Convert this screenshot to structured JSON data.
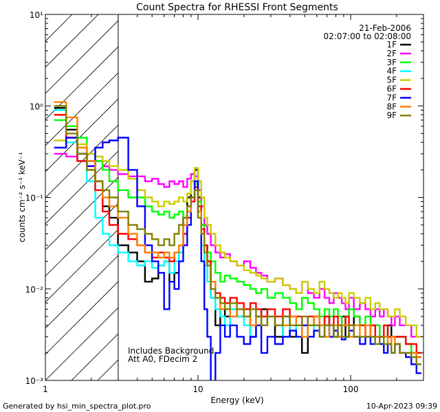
{
  "chart_data": {
    "type": "line",
    "title": "Count Spectra for RHESSI Front Segments",
    "xlabel": "Energy (keV)",
    "ylabel": "counts cm⁻² s⁻¹ keV⁻¹",
    "xscale": "log",
    "yscale": "log",
    "xlim": [
      1,
      300
    ],
    "ylim": [
      0.001,
      10
    ],
    "x_ticks": [
      {
        "value": 1,
        "label": "1"
      },
      {
        "value": 10,
        "label": "10"
      },
      {
        "value": 100,
        "label": "100"
      }
    ],
    "y_ticks": [
      {
        "value": 10,
        "label": "10¹"
      },
      {
        "value": 1,
        "label": "10⁰"
      },
      {
        "value": 0.1,
        "label": "10⁻¹"
      },
      {
        "value": 0.01,
        "label": "10⁻²"
      },
      {
        "value": 0.001,
        "label": "10⁻³"
      }
    ],
    "date_line": "21-Feb-2006",
    "time_line": "02:07:00 to 02:08:00",
    "annotation_1": "Includes Background",
    "annotation_2": "Att A0, FDecim 2",
    "hatched_region_xmax": 3,
    "energy_bins": [
      1.25,
      1.5,
      1.75,
      2.0,
      2.25,
      2.5,
      2.75,
      3.25,
      3.75,
      4.25,
      4.75,
      5.25,
      5.75,
      6.25,
      6.75,
      7.25,
      7.75,
      8.25,
      8.75,
      9.25,
      9.75,
      10.25,
      10.75,
      11.25,
      11.75,
      12.5,
      13.5,
      14.5,
      15.5,
      17,
      19,
      21,
      23,
      25,
      27,
      30,
      34,
      38,
      42,
      46,
      50,
      55,
      60,
      65,
      70,
      75,
      80,
      85,
      90,
      95,
      100,
      110,
      120,
      130,
      140,
      150,
      160,
      170,
      180,
      190,
      200,
      220,
      240,
      260,
      280
    ],
    "series": [
      {
        "name": "1F",
        "color": "#000000",
        "values": [
          0.95,
          0.55,
          0.3,
          0.25,
          0.15,
          0.08,
          0.06,
          0.03,
          0.025,
          0.02,
          0.012,
          0.013,
          0.018,
          0.02,
          0.012,
          0.015,
          0.03,
          0.06,
          0.1,
          0.15,
          0.2,
          0.1,
          0.05,
          0.03,
          0.02,
          0.008,
          0.004,
          0.006,
          0.005,
          0.006,
          0.005,
          0.006,
          0.003,
          0.005,
          0.006,
          0.005,
          0.003,
          0.005,
          0.003,
          0.004,
          0.002,
          0.004,
          0.005,
          0.004,
          0.005,
          0.004,
          0.003,
          0.004,
          0.005,
          0.003,
          0.004,
          0.005,
          0.004,
          0.003,
          0.004,
          0.004,
          0.003,
          0.003,
          0.004,
          0.003,
          0.003,
          0.003,
          0.0025,
          0.002,
          0.0018
        ]
      },
      {
        "name": "2F",
        "color": "#ff00ff",
        "values": [
          0.3,
          0.28,
          0.25,
          0.22,
          0.25,
          0.22,
          0.2,
          0.18,
          0.17,
          0.17,
          0.15,
          0.16,
          0.14,
          0.13,
          0.15,
          0.14,
          0.15,
          0.13,
          0.16,
          0.18,
          0.17,
          0.12,
          0.08,
          0.05,
          0.04,
          0.03,
          0.025,
          0.022,
          0.024,
          0.02,
          0.018,
          0.02,
          0.017,
          0.015,
          0.014,
          0.012,
          0.013,
          0.011,
          0.01,
          0.009,
          0.012,
          0.009,
          0.008,
          0.01,
          0.008,
          0.007,
          0.009,
          0.008,
          0.007,
          0.006,
          0.008,
          0.006,
          0.007,
          0.006,
          0.005,
          0.006,
          0.005,
          0.006,
          0.005,
          0.004,
          0.005,
          0.004,
          0.004,
          0.003,
          0.003
        ]
      },
      {
        "name": "3F",
        "color": "#00ff00",
        "values": [
          0.7,
          0.6,
          0.45,
          0.3,
          0.25,
          0.2,
          0.15,
          0.12,
          0.1,
          0.1,
          0.08,
          0.07,
          0.065,
          0.07,
          0.06,
          0.065,
          0.07,
          0.06,
          0.08,
          0.1,
          0.14,
          0.09,
          0.05,
          0.03,
          0.025,
          0.02,
          0.015,
          0.012,
          0.014,
          0.013,
          0.012,
          0.011,
          0.01,
          0.009,
          0.01,
          0.008,
          0.009,
          0.008,
          0.007,
          0.006,
          0.008,
          0.007,
          0.006,
          0.005,
          0.006,
          0.005,
          0.006,
          0.005,
          0.004,
          0.005,
          0.006,
          0.005,
          0.004,
          0.005,
          0.004,
          0.004,
          0.003,
          0.004,
          0.003,
          0.003,
          0.003,
          0.003,
          0.0025,
          0.002,
          0.002
        ]
      },
      {
        "name": "4F",
        "color": "#00ffff",
        "values": [
          0.9,
          0.4,
          0.25,
          0.15,
          0.06,
          0.04,
          0.03,
          0.025,
          0.02,
          0.018,
          0.02,
          0.017,
          0.018,
          0.02,
          0.015,
          0.02,
          0.025,
          0.04,
          0.06,
          0.1,
          0.12,
          0.06,
          0.03,
          0.018,
          0.012,
          0.008,
          0.006,
          0.005,
          0.004,
          0.006,
          0.005,
          0.004,
          0.003,
          0.005,
          0.004,
          0.005,
          0.004,
          0.003,
          0.004,
          0.003,
          0.004,
          0.003,
          0.004,
          0.003,
          0.004,
          0.003,
          0.003,
          0.004,
          0.003,
          0.003,
          0.004,
          0.003,
          0.003,
          0.003,
          0.003,
          0.003,
          0.0025,
          0.003,
          0.0025,
          0.002,
          0.0025,
          0.002,
          0.002,
          0.0018,
          0.0015
        ]
      },
      {
        "name": "5F",
        "color": "#cccc00",
        "values": [
          0.42,
          0.45,
          0.38,
          0.3,
          0.28,
          0.25,
          0.22,
          0.2,
          0.16,
          0.12,
          0.1,
          0.09,
          0.08,
          0.09,
          0.085,
          0.09,
          0.1,
          0.09,
          0.11,
          0.15,
          0.21,
          0.15,
          0.1,
          0.06,
          0.05,
          0.04,
          0.03,
          0.025,
          0.022,
          0.02,
          0.018,
          0.016,
          0.015,
          0.014,
          0.013,
          0.012,
          0.013,
          0.011,
          0.01,
          0.009,
          0.012,
          0.01,
          0.009,
          0.012,
          0.01,
          0.009,
          0.008,
          0.009,
          0.008,
          0.007,
          0.009,
          0.008,
          0.007,
          0.008,
          0.006,
          0.007,
          0.006,
          0.006,
          0.005,
          0.005,
          0.006,
          0.005,
          0.004,
          0.004,
          0.003
        ]
      },
      {
        "name": "6F",
        "color": "#ff0000",
        "values": [
          0.8,
          0.45,
          0.25,
          0.2,
          0.12,
          0.07,
          0.05,
          0.04,
          0.035,
          0.03,
          0.025,
          0.022,
          0.025,
          0.022,
          0.02,
          0.025,
          0.03,
          0.04,
          0.06,
          0.09,
          0.13,
          0.08,
          0.045,
          0.03,
          0.02,
          0.012,
          0.009,
          0.008,
          0.007,
          0.008,
          0.007,
          0.006,
          0.007,
          0.006,
          0.005,
          0.006,
          0.005,
          0.006,
          0.005,
          0.005,
          0.004,
          0.005,
          0.005,
          0.004,
          0.005,
          0.004,
          0.005,
          0.004,
          0.004,
          0.005,
          0.004,
          0.004,
          0.004,
          0.003,
          0.004,
          0.003,
          0.003,
          0.004,
          0.003,
          0.003,
          0.003,
          0.003,
          0.0025,
          0.0025,
          0.002
        ]
      },
      {
        "name": "7F",
        "color": "#0000ff",
        "values": [
          0.35,
          0.45,
          0.3,
          0.22,
          0.35,
          0.4,
          0.42,
          0.45,
          0.2,
          0.08,
          0.03,
          0.02,
          0.015,
          0.006,
          0.012,
          0.01,
          0.02,
          0.03,
          0.05,
          0.1,
          0.15,
          0.07,
          0.02,
          0.006,
          0.003,
          0.0008,
          0.002,
          0.004,
          0.003,
          0.004,
          0.003,
          0.0025,
          0.003,
          0.004,
          0.002,
          0.003,
          0.0025,
          0.003,
          0.0035,
          0.003,
          0.004,
          0.003,
          0.0035,
          0.003,
          0.004,
          0.003,
          0.0035,
          0.003,
          0.0028,
          0.003,
          0.0035,
          0.003,
          0.0025,
          0.003,
          0.0025,
          0.003,
          0.0025,
          0.002,
          0.0025,
          0.002,
          0.0025,
          0.002,
          0.0018,
          0.0015,
          0.0012
        ]
      },
      {
        "name": "8F",
        "color": "#ff8000",
        "values": [
          1.1,
          0.75,
          0.35,
          0.25,
          0.15,
          0.1,
          0.08,
          0.06,
          0.04,
          0.03,
          0.025,
          0.025,
          0.022,
          0.025,
          0.022,
          0.025,
          0.03,
          0.05,
          0.07,
          0.1,
          0.12,
          0.07,
          0.04,
          0.025,
          0.018,
          0.012,
          0.008,
          0.006,
          0.006,
          0.005,
          0.006,
          0.005,
          0.004,
          0.005,
          0.004,
          0.005,
          0.004,
          0.004,
          0.005,
          0.004,
          0.003,
          0.004,
          0.005,
          0.004,
          0.003,
          0.004,
          0.004,
          0.003,
          0.004,
          0.004,
          0.003,
          0.004,
          0.003,
          0.004,
          0.003,
          0.003,
          0.003,
          0.003,
          0.0025,
          0.003,
          0.0025,
          0.002,
          0.002,
          0.002,
          0.0018
        ]
      },
      {
        "name": "9F",
        "color": "#808000",
        "values": [
          1.0,
          0.5,
          0.3,
          0.2,
          0.15,
          0.12,
          0.1,
          0.07,
          0.05,
          0.045,
          0.04,
          0.035,
          0.03,
          0.035,
          0.03,
          0.04,
          0.05,
          0.06,
          0.08,
          0.1,
          0.12,
          0.06,
          0.04,
          0.025,
          0.018,
          0.01,
          0.008,
          0.007,
          0.006,
          0.007,
          0.006,
          0.005,
          0.006,
          0.005,
          0.004,
          0.005,
          0.004,
          0.005,
          0.004,
          0.004,
          0.005,
          0.004,
          0.004,
          0.003,
          0.004,
          0.004,
          0.003,
          0.004,
          0.003,
          0.003,
          0.004,
          0.003,
          0.003,
          0.003,
          0.003,
          0.0025,
          0.003,
          0.0025,
          0.0025,
          0.002,
          0.0025,
          0.002,
          0.002,
          0.0018,
          0.0015
        ]
      }
    ]
  },
  "footer": {
    "generated_by": "Generated by hsi_min_spectra_plot.pro",
    "timestamp": "10-Apr-2023 09:39"
  }
}
